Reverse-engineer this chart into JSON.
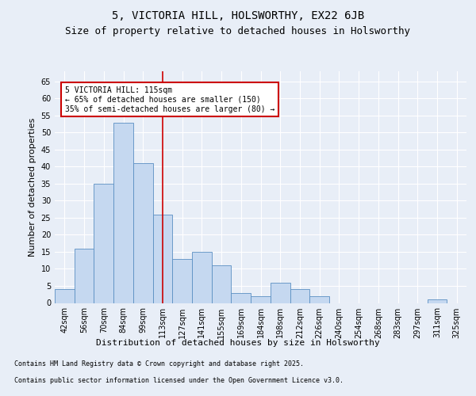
{
  "title": "5, VICTORIA HILL, HOLSWORTHY, EX22 6JB",
  "subtitle": "Size of property relative to detached houses in Holsworthy",
  "xlabel": "Distribution of detached houses by size in Holsworthy",
  "ylabel": "Number of detached properties",
  "categories": [
    "42sqm",
    "56sqm",
    "70sqm",
    "84sqm",
    "99sqm",
    "113sqm",
    "127sqm",
    "141sqm",
    "155sqm",
    "169sqm",
    "184sqm",
    "198sqm",
    "212sqm",
    "226sqm",
    "240sqm",
    "254sqm",
    "268sqm",
    "283sqm",
    "297sqm",
    "311sqm",
    "325sqm"
  ],
  "values": [
    4,
    16,
    35,
    53,
    41,
    26,
    13,
    15,
    11,
    3,
    2,
    6,
    4,
    2,
    0,
    0,
    0,
    0,
    0,
    1,
    0
  ],
  "bar_color": "#c5d8f0",
  "bar_edge_color": "#5a8fc2",
  "vline_x_index": 5,
  "vline_color": "#cc0000",
  "annotation_text": "5 VICTORIA HILL: 115sqm\n← 65% of detached houses are smaller (150)\n35% of semi-detached houses are larger (80) →",
  "annotation_box_color": "#ffffff",
  "annotation_box_edge": "#cc0000",
  "ylim": [
    0,
    68
  ],
  "yticks": [
    0,
    5,
    10,
    15,
    20,
    25,
    30,
    35,
    40,
    45,
    50,
    55,
    60,
    65
  ],
  "bg_color": "#e8eef7",
  "plot_bg_color": "#e8eef7",
  "grid_color": "#ffffff",
  "footer_line1": "Contains HM Land Registry data © Crown copyright and database right 2025.",
  "footer_line2": "Contains public sector information licensed under the Open Government Licence v3.0.",
  "title_fontsize": 10,
  "subtitle_fontsize": 9,
  "xlabel_fontsize": 8,
  "ylabel_fontsize": 8,
  "tick_fontsize": 7,
  "annotation_fontsize": 7,
  "footer_fontsize": 6
}
